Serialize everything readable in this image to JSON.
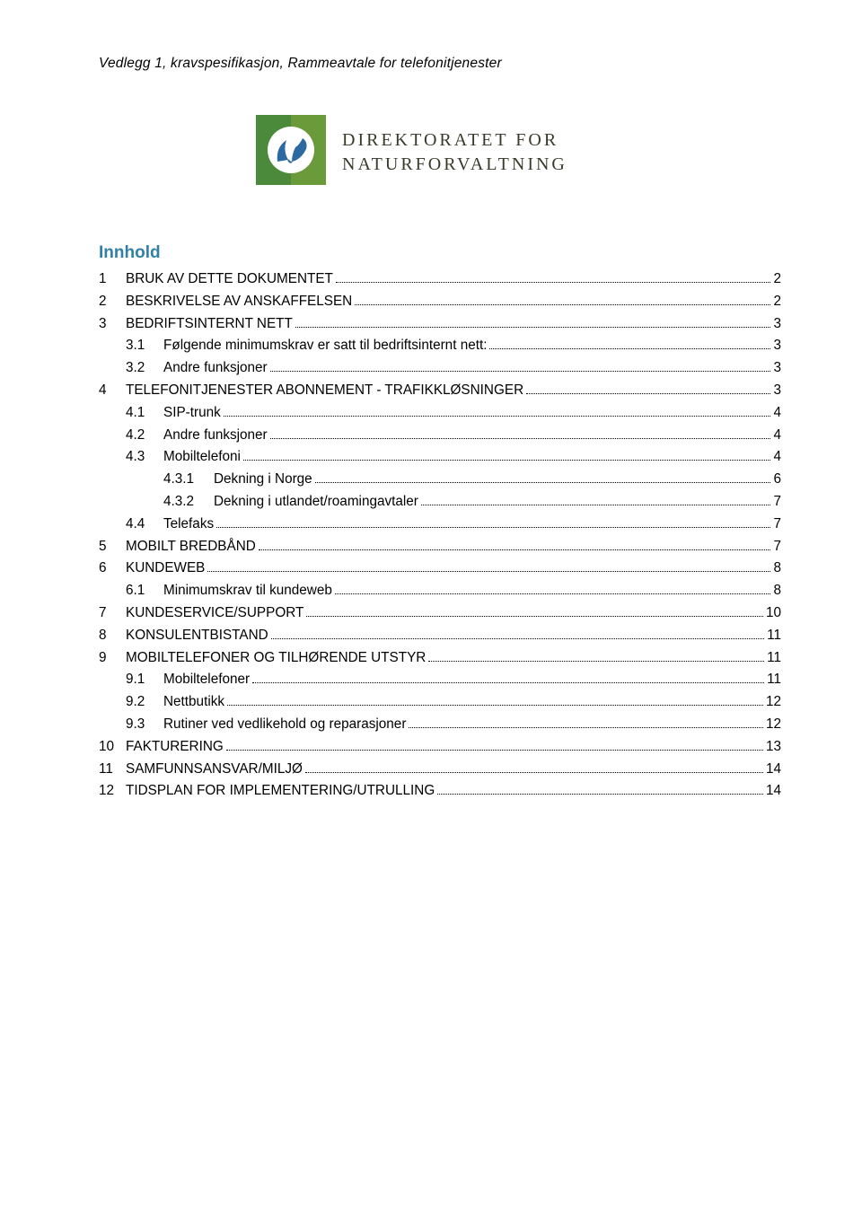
{
  "document": {
    "header": "Vedlegg 1, kravspesifikasjon, Rammeavtale for telefonitjenester",
    "logo": {
      "line1": "DIREKTORATET FOR",
      "line2": "NATURFORVALTNING",
      "colors": {
        "badge_bg": "#4a8a3a",
        "badge_bg2": "#7aa03a",
        "circle": "#ffffff",
        "leaf": "#2b6aa0",
        "text": "#3a3a2a"
      }
    },
    "toc_title": "Innhold",
    "toc": [
      {
        "level": 1,
        "num": "1",
        "label": "BRUK AV DETTE DOKUMENTET",
        "page": "2"
      },
      {
        "level": 1,
        "num": "2",
        "label": "BESKRIVELSE AV ANSKAFFELSEN",
        "page": "2"
      },
      {
        "level": 1,
        "num": "3",
        "label": "BEDRIFTSINTERNT NETT",
        "page": "3"
      },
      {
        "level": 2,
        "num": "3.1",
        "label": "Følgende minimumskrav er satt til bedriftsinternt nett:",
        "page": "3"
      },
      {
        "level": 2,
        "num": "3.2",
        "label": "Andre funksjoner",
        "page": "3"
      },
      {
        "level": 1,
        "num": "4",
        "label": "TELEFONITJENESTER ABONNEMENT - TRAFIKKLØSNINGER",
        "page": "3"
      },
      {
        "level": 2,
        "num": "4.1",
        "label": "SIP-trunk",
        "page": "4"
      },
      {
        "level": 2,
        "num": "4.2",
        "label": "Andre funksjoner",
        "page": "4"
      },
      {
        "level": 2,
        "num": "4.3",
        "label": "Mobiltelefoni",
        "page": "4"
      },
      {
        "level": 3,
        "num": "4.3.1",
        "label": "Dekning i Norge",
        "page": "6"
      },
      {
        "level": 3,
        "num": "4.3.2",
        "label": "Dekning i utlandet/roamingavtaler",
        "page": "7"
      },
      {
        "level": 2,
        "num": "4.4",
        "label": "Telefaks",
        "page": "7"
      },
      {
        "level": 1,
        "num": "5",
        "label": "MOBILT BREDBÅND",
        "page": "7"
      },
      {
        "level": 1,
        "num": "6",
        "label": "KUNDEWEB",
        "page": "8"
      },
      {
        "level": 2,
        "num": "6.1",
        "label": "Minimumskrav til kundeweb",
        "page": "8"
      },
      {
        "level": 1,
        "num": "7",
        "label": "KUNDESERVICE/SUPPORT",
        "page": "10"
      },
      {
        "level": 1,
        "num": "8",
        "label": "KONSULENTBISTAND",
        "page": "11"
      },
      {
        "level": 1,
        "num": "9",
        "label": "MOBILTELEFONER OG TILHØRENDE UTSTYR",
        "page": "11"
      },
      {
        "level": 2,
        "num": "9.1",
        "label": "Mobiltelefoner",
        "page": "11"
      },
      {
        "level": 2,
        "num": "9.2",
        "label": "Nettbutikk",
        "page": "12"
      },
      {
        "level": 2,
        "num": "9.3",
        "label": "Rutiner ved vedlikehold og reparasjoner",
        "page": "12"
      },
      {
        "level": 1,
        "num": "10",
        "label": "FAKTURERING",
        "page": "13"
      },
      {
        "level": 1,
        "num": "11",
        "label": "SAMFUNNSANSVAR/MILJØ",
        "page": "14"
      },
      {
        "level": 1,
        "num": "12",
        "label": "TIDSPLAN FOR IMPLEMENTERING/UTRULLING",
        "page": "14"
      }
    ],
    "styling": {
      "toc_title_color": "#3180a8",
      "body_text_color": "#000000",
      "font_size_body": 15.3,
      "font_size_header": 15.5,
      "font_size_toc_title": 19,
      "font_family_body": "Arial",
      "font_family_logo": "Georgia"
    }
  }
}
